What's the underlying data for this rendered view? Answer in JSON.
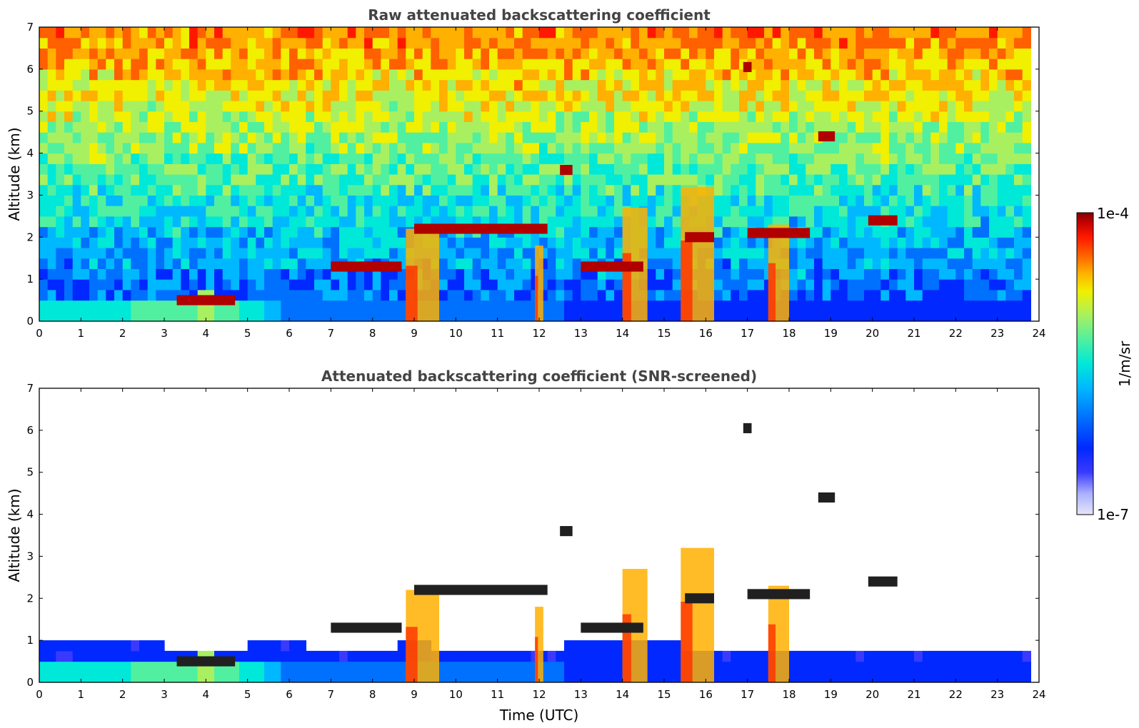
{
  "chart_data": [
    {
      "type": "heatmap",
      "title": "Raw attenuated backscattering coefficient",
      "xlabel": "",
      "ylabel": "Altitude (km)",
      "xlim": [
        0,
        24
      ],
      "ylim": [
        0,
        7
      ],
      "x_ticks": [
        "0",
        "1",
        "2",
        "3",
        "4",
        "5",
        "6",
        "7",
        "8",
        "9",
        "10",
        "11",
        "12",
        "13",
        "14",
        "15",
        "16",
        "17",
        "18",
        "19",
        "20",
        "21",
        "22",
        "23",
        "24"
      ],
      "y_ticks": [
        "0",
        "1",
        "2",
        "3",
        "4",
        "5",
        "6",
        "7"
      ],
      "features": {
        "boundary_layer_aerosol": [
          {
            "t": 0.0,
            "top": 0.6,
            "level": 0.42
          },
          {
            "t": 1.0,
            "top": 0.6,
            "level": 0.45
          },
          {
            "t": 2.0,
            "top": 0.55,
            "level": 0.45
          },
          {
            "t": 3.0,
            "top": 0.5,
            "level": 0.5
          },
          {
            "t": 4.0,
            "top": 0.65,
            "level": 0.55
          },
          {
            "t": 5.0,
            "top": 0.5,
            "level": 0.45
          },
          {
            "t": 6.0,
            "top": 0.4,
            "level": 0.3
          },
          {
            "t": 19.0,
            "top": 0.45,
            "level": 0.2
          },
          {
            "t": 23.8,
            "top": 0.6,
            "level": 0.2
          }
        ],
        "cloud_layers": [
          {
            "t_start": 3.3,
            "t_end": 4.7,
            "alt": 0.5
          },
          {
            "t_start": 7.0,
            "t_end": 8.7,
            "alt": 1.3
          },
          {
            "t_start": 9.0,
            "t_end": 12.2,
            "alt": 2.2
          },
          {
            "t_start": 13.0,
            "t_end": 14.5,
            "alt": 1.3
          },
          {
            "t_start": 15.5,
            "t_end": 16.2,
            "alt": 2.0
          },
          {
            "t_start": 17.0,
            "t_end": 18.5,
            "alt": 2.1
          },
          {
            "t_start": 19.9,
            "t_end": 20.6,
            "alt": 2.4
          },
          {
            "t_start": 12.5,
            "t_end": 12.8,
            "alt": 3.6
          },
          {
            "t_start": 18.7,
            "t_end": 19.1,
            "alt": 4.4
          },
          {
            "t_start": 16.9,
            "t_end": 17.1,
            "alt": 6.05
          }
        ],
        "precipitation_columns": [
          {
            "t_start": 8.8,
            "t_end": 9.6,
            "top": 2.2
          },
          {
            "t_start": 11.9,
            "t_end": 12.1,
            "top": 1.8
          },
          {
            "t_start": 14.0,
            "t_end": 14.6,
            "top": 2.7
          },
          {
            "t_start": 15.4,
            "t_end": 16.2,
            "top": 3.2
          },
          {
            "t_start": 17.5,
            "t_end": 18.0,
            "top": 2.3
          }
        ]
      }
    },
    {
      "type": "heatmap",
      "title": "Attenuated backscattering coefficient (SNR-screened)",
      "xlabel": "Time (UTC)",
      "ylabel": "Altitude (km)",
      "xlim": [
        0,
        24
      ],
      "ylim": [
        0,
        7
      ],
      "x_ticks": [
        "0",
        "1",
        "2",
        "3",
        "4",
        "5",
        "6",
        "7",
        "8",
        "9",
        "10",
        "11",
        "12",
        "13",
        "14",
        "15",
        "16",
        "17",
        "18",
        "19",
        "20",
        "21",
        "22",
        "23",
        "24"
      ],
      "y_ticks": [
        "0",
        "1",
        "2",
        "3",
        "4",
        "5",
        "6",
        "7"
      ],
      "features": {
        "screened_signal_top": [
          {
            "t": 0.0,
            "top": 1.1
          },
          {
            "t": 2.0,
            "top": 1.1
          },
          {
            "t": 2.8,
            "top": 0.9
          },
          {
            "t": 4.0,
            "top": 0.75
          },
          {
            "t": 6.0,
            "top": 1.0
          },
          {
            "t": 7.0,
            "top": 0.75
          },
          {
            "t": 9.0,
            "top": 0.9
          },
          {
            "t": 11.0,
            "top": 0.8
          },
          {
            "t": 13.0,
            "top": 0.9
          },
          {
            "t": 15.0,
            "top": 0.9
          },
          {
            "t": 17.0,
            "top": 0.8
          },
          {
            "t": 18.5,
            "top": 0.7
          },
          {
            "t": 23.8,
            "top": 0.75
          }
        ]
      }
    }
  ],
  "colorbar": {
    "label": "1/m/sr",
    "max_label": "1e-4",
    "min_label": "1e-7",
    "colors": [
      "#e6e6f8",
      "#aab0ff",
      "#3a3aff",
      "#0028ff",
      "#0070ff",
      "#00b8ff",
      "#00e8d8",
      "#50f0a0",
      "#a8f060",
      "#f0f000",
      "#ffb000",
      "#ff6000",
      "#ff1800",
      "#c00000",
      "#800000"
    ]
  }
}
